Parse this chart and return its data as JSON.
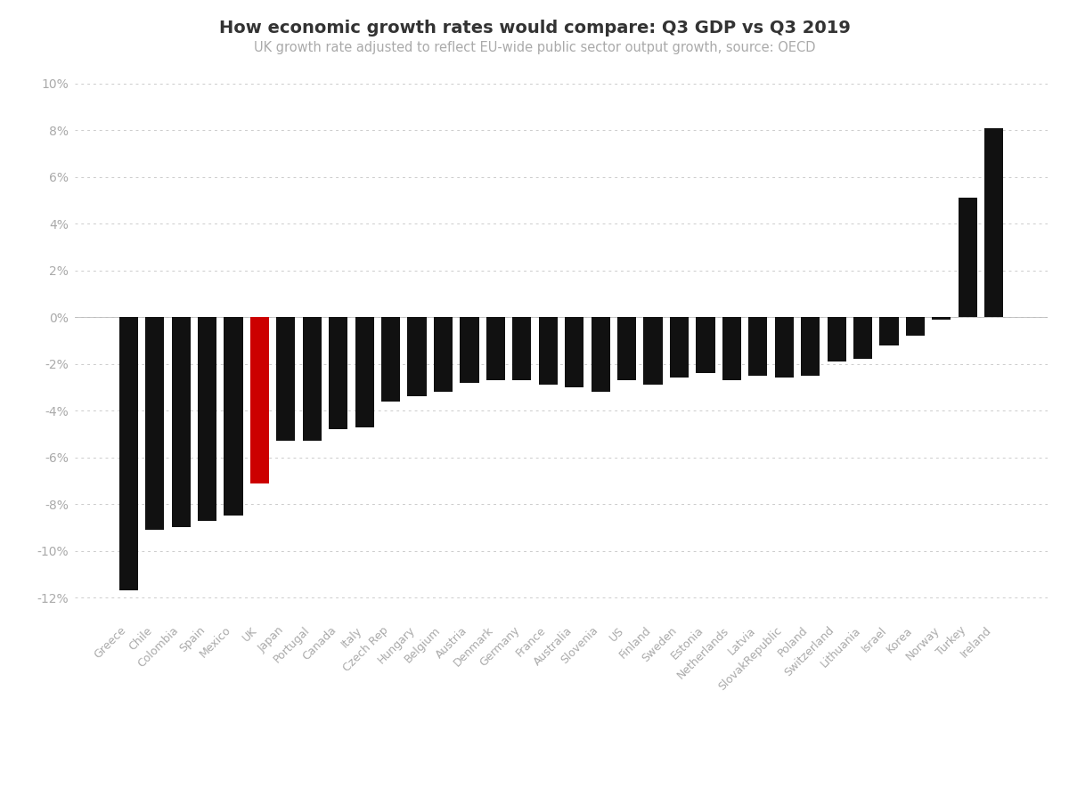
{
  "title": "How economic growth rates would compare: Q3 GDP vs Q3 2019",
  "subtitle": "UK growth rate adjusted to reflect EU-wide public sector output growth, source: OECD",
  "categories": [
    "Greece",
    "Chile",
    "Colombia",
    "Spain",
    "Mexico",
    "UK",
    "Japan",
    "Portugal",
    "Canada",
    "Italy",
    "Czech Rep",
    "Hungary",
    "Belgium",
    "Austria",
    "Denmark",
    "Germany",
    "France",
    "Australia",
    "Slovenia",
    "US",
    "Finland",
    "Sweden",
    "Estonia",
    "Netherlands",
    "Latvia",
    "SlovakRepublic",
    "Poland",
    "Switzerland",
    "Lithuania",
    "Israel",
    "Korea",
    "Norway",
    "Turkey",
    "Ireland"
  ],
  "values": [
    -11.7,
    -9.1,
    -9.0,
    -8.7,
    -8.5,
    -7.1,
    -5.3,
    -5.3,
    -4.8,
    -4.7,
    -3.6,
    -3.4,
    -3.2,
    -2.8,
    -2.7,
    -2.7,
    -2.9,
    -3.0,
    -3.2,
    -2.7,
    -2.9,
    -2.6,
    -2.4,
    -2.7,
    -2.5,
    -2.6,
    -2.5,
    -1.9,
    -1.8,
    -1.2,
    -0.8,
    -0.1,
    5.1,
    8.1
  ],
  "bar_colors": [
    "#111111",
    "#111111",
    "#111111",
    "#111111",
    "#111111",
    "#cc0000",
    "#111111",
    "#111111",
    "#111111",
    "#111111",
    "#111111",
    "#111111",
    "#111111",
    "#111111",
    "#111111",
    "#111111",
    "#111111",
    "#111111",
    "#111111",
    "#111111",
    "#111111",
    "#111111",
    "#111111",
    "#111111",
    "#111111",
    "#111111",
    "#111111",
    "#111111",
    "#111111",
    "#111111",
    "#111111",
    "#111111",
    "#111111",
    "#111111"
  ],
  "ylim": [
    -13,
    10
  ],
  "yticks": [
    -12,
    -10,
    -8,
    -6,
    -4,
    -2,
    0,
    2,
    4,
    6,
    8,
    10
  ],
  "background_color": "#ffffff",
  "grid_color": "#cccccc",
  "title_fontsize": 14,
  "subtitle_fontsize": 10.5,
  "tick_label_color": "#aaaaaa",
  "ytick_label_color": "#aaaaaa"
}
